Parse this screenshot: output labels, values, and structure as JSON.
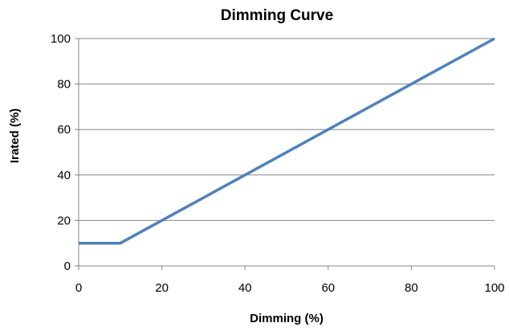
{
  "chart_data": {
    "type": "line",
    "title": "Dimming Curve",
    "xlabel": "Dimming (%)",
    "ylabel": "Irated (%)",
    "xlim": [
      0,
      100
    ],
    "ylim": [
      0,
      100
    ],
    "x_ticks": [
      "0",
      "20",
      "40",
      "60",
      "80",
      "100"
    ],
    "y_ticks": [
      "0",
      "20",
      "40",
      "60",
      "80",
      "100"
    ],
    "grid": "horizontal",
    "legend": "none",
    "series": [
      {
        "color": "#4f81bd",
        "x": [
          0,
          10,
          100
        ],
        "y": [
          10,
          10,
          100
        ]
      }
    ]
  }
}
